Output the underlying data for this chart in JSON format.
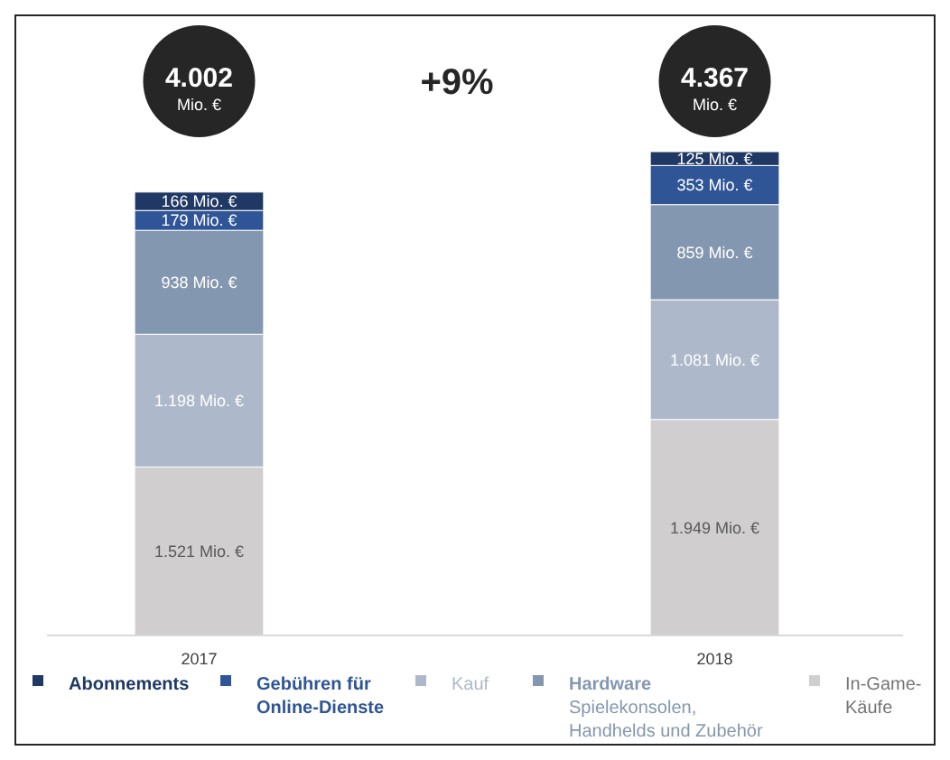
{
  "chart_data": {
    "type": "bar",
    "stacked": true,
    "categories": [
      "2017",
      "2018"
    ],
    "series": [
      {
        "name": "In-Game-Käufe",
        "color": "#d0cece",
        "values": [
          1521,
          1949
        ],
        "value_labels": [
          "1.521 Mio. €",
          "1.949 Mio. €"
        ]
      },
      {
        "name": "Kauf",
        "color": "#adb9ca",
        "values": [
          1198,
          1081
        ],
        "value_labels": [
          "1.198 Mio. €",
          "1.081 Mio. €"
        ]
      },
      {
        "name": "Hardware Spielekonsolen, Handhelds und Zubehör",
        "color": "#8497b0",
        "values": [
          938,
          859
        ],
        "value_labels": [
          "938 Mio. €",
          "859 Mio. €"
        ]
      },
      {
        "name": "Gebühren für Online-Dienste",
        "color": "#2f5597",
        "values": [
          179,
          353
        ],
        "value_labels": [
          "179 Mio. €",
          "353 Mio. €"
        ]
      },
      {
        "name": "Abonnements",
        "color": "#1f3864",
        "values": [
          166,
          125
        ],
        "value_labels": [
          "166 Mio. €",
          "125 Mio. €"
        ]
      }
    ],
    "totals": [
      "4.002 Mio. €",
      "4.367 Mio. €"
    ],
    "annotations": [
      "+9%"
    ],
    "legend": "bottom"
  }
}
